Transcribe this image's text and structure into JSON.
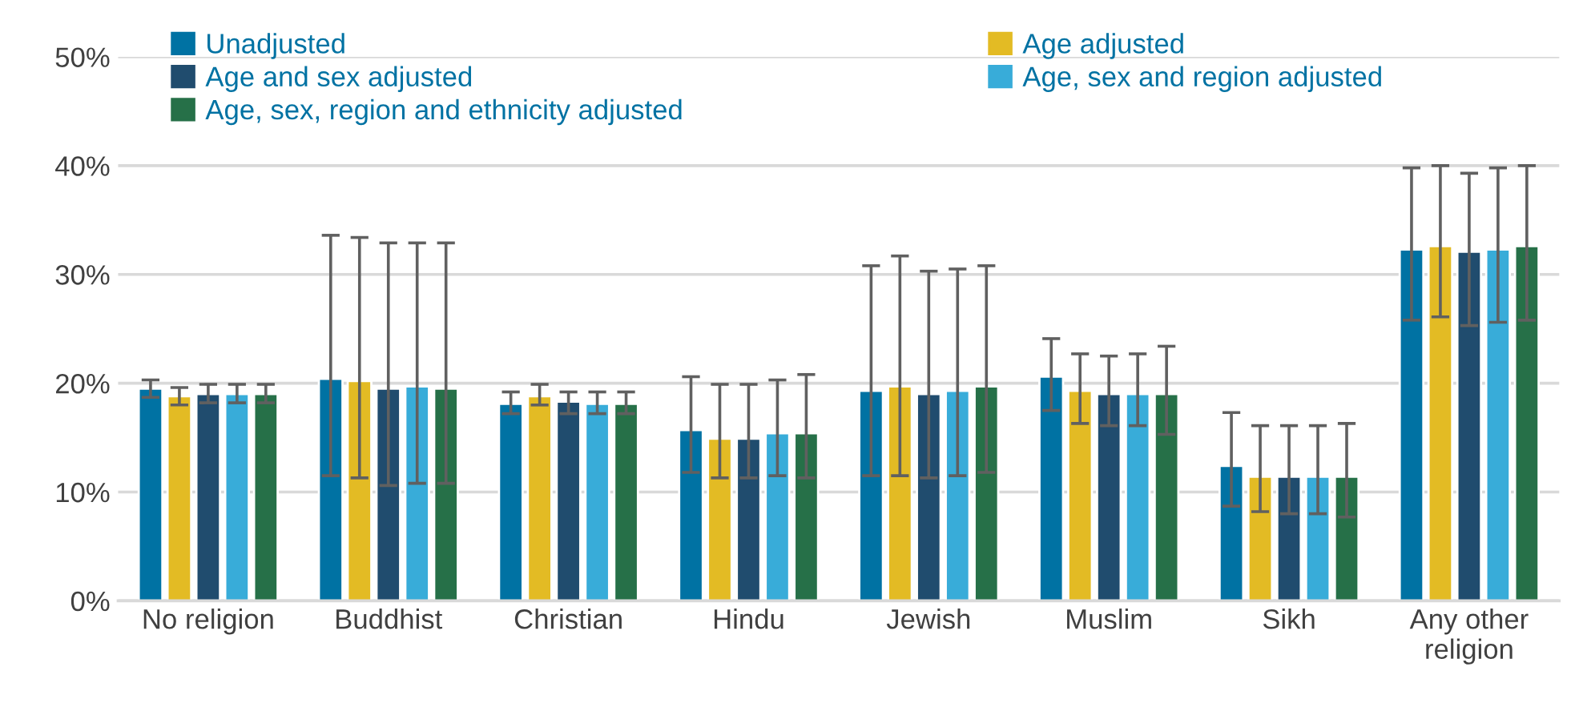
{
  "chart_data": {
    "type": "bar",
    "categories": [
      "No religion",
      "Buddhist",
      "Christian",
      "Hindu",
      "Jewish",
      "Muslim",
      "Sikh",
      "Any other\nreligion"
    ],
    "series": [
      {
        "name": "Unadjusted",
        "color": "#0072a3",
        "values": [
          19.5,
          20.4,
          18.1,
          15.7,
          19.3,
          20.6,
          12.4,
          32.3
        ],
        "errors": [
          [
            18.7,
            20.3
          ],
          [
            11.5,
            33.6
          ],
          [
            17.2,
            19.2
          ],
          [
            11.8,
            20.6
          ],
          [
            11.5,
            30.8
          ],
          [
            17.5,
            24.1
          ],
          [
            8.7,
            17.3
          ],
          [
            25.8,
            39.8
          ]
        ]
      },
      {
        "name": "Age adjusted",
        "color": "#e3bb24",
        "values": [
          18.8,
          20.2,
          18.8,
          14.9,
          19.7,
          19.3,
          11.4,
          32.6
        ],
        "errors": [
          [
            18.0,
            19.6
          ],
          [
            11.3,
            33.4
          ],
          [
            18.0,
            19.9
          ],
          [
            11.3,
            19.9
          ],
          [
            11.5,
            31.7
          ],
          [
            16.3,
            22.7
          ],
          [
            8.2,
            16.1
          ],
          [
            26.1,
            40.0
          ]
        ]
      },
      {
        "name": "Age and sex adjusted",
        "color": "#204c6e",
        "values": [
          19.0,
          19.5,
          18.3,
          14.9,
          19.0,
          19.0,
          11.4,
          32.1
        ],
        "errors": [
          [
            18.2,
            19.9
          ],
          [
            10.6,
            32.9
          ],
          [
            17.2,
            19.2
          ],
          [
            11.3,
            19.9
          ],
          [
            11.3,
            30.3
          ],
          [
            16.1,
            22.5
          ],
          [
            8.0,
            16.1
          ],
          [
            25.3,
            39.3
          ]
        ]
      },
      {
        "name": "Age, sex and region adjusted",
        "color": "#38acd9",
        "values": [
          19.0,
          19.7,
          18.1,
          15.4,
          19.3,
          19.0,
          11.4,
          32.3
        ],
        "errors": [
          [
            18.2,
            19.9
          ],
          [
            10.8,
            32.9
          ],
          [
            17.2,
            19.2
          ],
          [
            11.5,
            20.3
          ],
          [
            11.5,
            30.5
          ],
          [
            16.1,
            22.7
          ],
          [
            8.0,
            16.1
          ],
          [
            25.6,
            39.8
          ]
        ]
      },
      {
        "name": "Age, sex, region and ethnicity adjusted",
        "color": "#267048",
        "values": [
          19.0,
          19.5,
          18.1,
          15.4,
          19.7,
          19.0,
          11.4,
          32.6
        ],
        "errors": [
          [
            18.2,
            19.9
          ],
          [
            10.8,
            32.9
          ],
          [
            17.2,
            19.2
          ],
          [
            11.3,
            20.8
          ],
          [
            11.8,
            30.8
          ],
          [
            15.3,
            23.4
          ],
          [
            7.7,
            16.3
          ],
          [
            25.8,
            40.0
          ]
        ]
      }
    ],
    "ylim": [
      0,
      50
    ],
    "yticks": [
      {
        "value": 0,
        "label": "0%"
      },
      {
        "value": 10,
        "label": "10%"
      },
      {
        "value": 20,
        "label": "20%"
      },
      {
        "value": 30,
        "label": "30%"
      },
      {
        "value": 40,
        "label": "40%"
      },
      {
        "value": 50,
        "label": "50%"
      }
    ],
    "grid": "y",
    "legend": "top"
  }
}
